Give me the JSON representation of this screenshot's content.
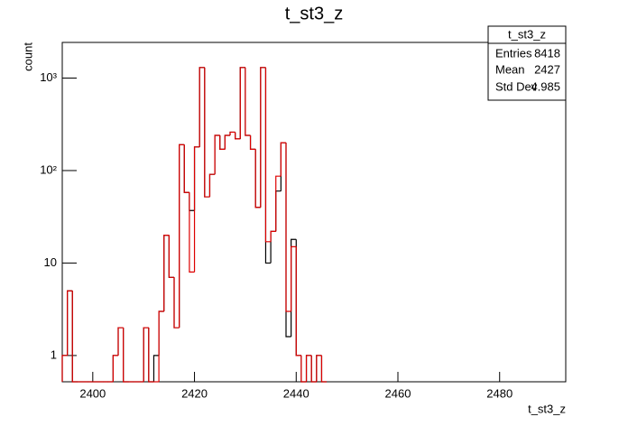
{
  "chart_data": {
    "type": "histogram",
    "title": "t_st3_z",
    "x_label": "t_st3_z",
    "y_label": "count",
    "log_y": true,
    "xlim": [
      2394,
      2493
    ],
    "ylim": [
      0.52,
      2430
    ],
    "xticks": [
      2400,
      2420,
      2440,
      2460,
      2480
    ],
    "yticks": [
      1,
      10,
      {
        "value": 100,
        "label": "10²"
      },
      {
        "value": 1000,
        "label": "10³"
      }
    ],
    "bins": [
      2394,
      2395,
      2396,
      2397,
      2398,
      2399,
      2400,
      2401,
      2402,
      2403,
      2404,
      2405,
      2406,
      2407,
      2408,
      2409,
      2410,
      2411,
      2412,
      2413,
      2414,
      2415,
      2416,
      2417,
      2418,
      2419,
      2420,
      2421,
      2422,
      2423,
      2424,
      2425,
      2426,
      2427,
      2428,
      2429,
      2430,
      2431,
      2432,
      2433,
      2434,
      2435,
      2436,
      2437,
      2438,
      2439,
      2440,
      2441,
      2442,
      2443,
      2444,
      2445,
      2446
    ],
    "series": [
      {
        "color": "#000000",
        "values": [
          1,
          5,
          0,
          0,
          0,
          0,
          0,
          0,
          0,
          0,
          1,
          2,
          0,
          0,
          0,
          0,
          2,
          0,
          1,
          3,
          20,
          7,
          2,
          190,
          58,
          37,
          180,
          1300,
          52,
          91,
          240,
          170,
          240,
          260,
          220,
          1300,
          240,
          170,
          40,
          1300,
          10,
          22,
          60,
          200,
          1.6,
          18,
          1,
          0,
          1,
          0,
          1,
          0
        ]
      },
      {
        "color": "#dd0000",
        "values": [
          1,
          5,
          0,
          0,
          0,
          0,
          0,
          0,
          0,
          0,
          1,
          2,
          0,
          0,
          0,
          0,
          2,
          0,
          0,
          3,
          20,
          7,
          2,
          190,
          58,
          8,
          180,
          1300,
          52,
          91,
          240,
          170,
          240,
          260,
          220,
          1300,
          240,
          170,
          40,
          1300,
          17,
          22,
          87,
          200,
          3,
          15,
          1,
          0,
          1,
          0,
          1,
          0
        ]
      }
    ],
    "stats": {
      "title": "t_st3_z",
      "rows": [
        {
          "label": "Entries",
          "value": 8418
        },
        {
          "label": "Mean",
          "value": 2427
        },
        {
          "label": "Std Dev",
          "value": 4.985
        }
      ]
    }
  }
}
